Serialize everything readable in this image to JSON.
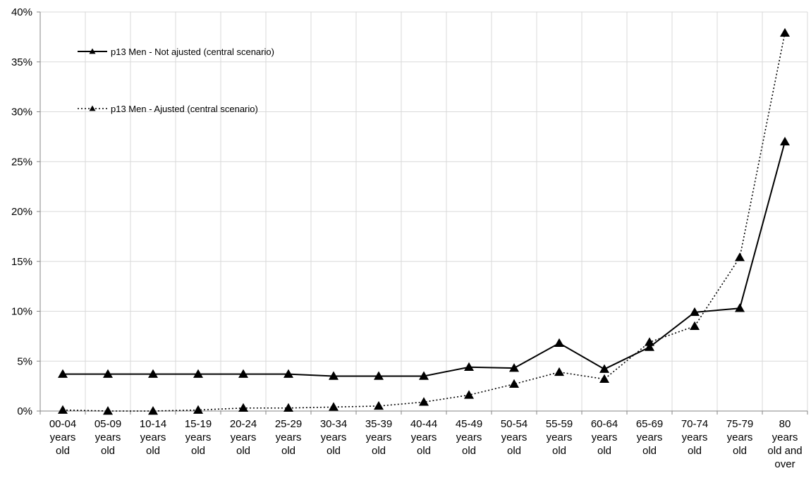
{
  "chart_data": {
    "type": "line",
    "title": "",
    "xlabel": "",
    "ylabel": "",
    "ylim": [
      0,
      40
    ],
    "y_ticks": [
      "0%",
      "5%",
      "10%",
      "15%",
      "20%",
      "25%",
      "30%",
      "35%",
      "40%"
    ],
    "grid": true,
    "legend_position": "top-left",
    "categories": [
      [
        "00-04",
        "years",
        "old"
      ],
      [
        "05-09",
        "years",
        "old"
      ],
      [
        "10-14",
        "years",
        "old"
      ],
      [
        "15-19",
        "years",
        "old"
      ],
      [
        "20-24",
        "years",
        "old"
      ],
      [
        "25-29",
        "years",
        "old"
      ],
      [
        "30-34",
        "years",
        "old"
      ],
      [
        "35-39",
        "years",
        "old"
      ],
      [
        "40-44",
        "years",
        "old"
      ],
      [
        "45-49",
        "years",
        "old"
      ],
      [
        "50-54",
        "years",
        "old"
      ],
      [
        "55-59",
        "years",
        "old"
      ],
      [
        "60-64",
        "years",
        "old"
      ],
      [
        "65-69",
        "years",
        "old"
      ],
      [
        "70-74",
        "years",
        "old"
      ],
      [
        "75-79",
        "years",
        "old"
      ],
      [
        "80",
        "years",
        "old and",
        "over"
      ]
    ],
    "series": [
      {
        "name": "p13 Men - Not ajusted (central scenario)",
        "line_style": "solid",
        "marker": "triangle",
        "color": "#000000",
        "values": [
          3.7,
          3.7,
          3.7,
          3.7,
          3.7,
          3.7,
          3.5,
          3.5,
          3.5,
          4.4,
          4.3,
          6.8,
          4.2,
          6.4,
          9.9,
          10.3,
          27.0
        ]
      },
      {
        "name": "p13 Men - Ajusted (central scenario)",
        "line_style": "dotted",
        "marker": "triangle",
        "color": "#000000",
        "values": [
          0.1,
          0.0,
          0.0,
          0.1,
          0.3,
          0.3,
          0.4,
          0.5,
          0.9,
          1.6,
          2.7,
          3.9,
          3.2,
          6.9,
          8.5,
          15.4,
          37.9
        ]
      }
    ]
  }
}
